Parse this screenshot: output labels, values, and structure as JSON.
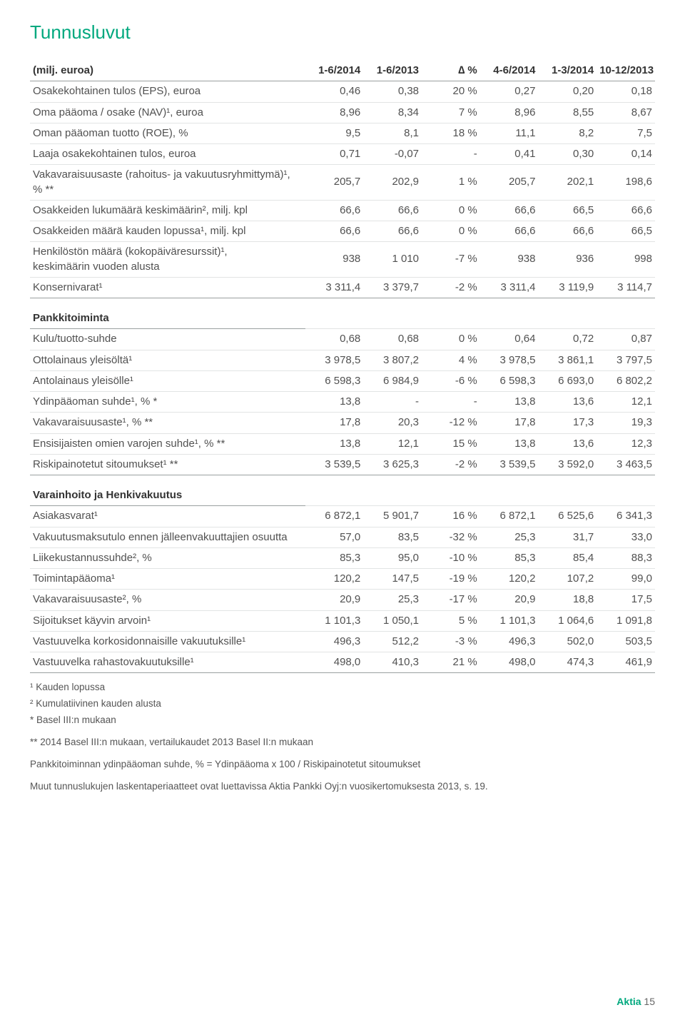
{
  "colors": {
    "accent": "#00a87e",
    "text": "#515151",
    "headerText": "#333333",
    "ruleStrong": "#9aa0a0",
    "ruleLight": "#e2e4e4",
    "background": "#ffffff"
  },
  "title": "Tunnusluvut",
  "columns": [
    "(milj. euroa)",
    "1-6/2014",
    "1-6/2013",
    "∆ %",
    "4-6/2014",
    "1-3/2014",
    "10-12/2013"
  ],
  "sections": [
    {
      "header": null,
      "rows": [
        {
          "label": "Osakekohtainen tulos (EPS), euroa",
          "v": [
            "0,46",
            "0,38",
            "20 %",
            "0,27",
            "0,20",
            "0,18"
          ]
        },
        {
          "label": "Oma pääoma / osake (NAV)¹, euroa",
          "v": [
            "8,96",
            "8,34",
            "7 %",
            "8,96",
            "8,55",
            "8,67"
          ]
        },
        {
          "label": "Oman pääoman tuotto (ROE), %",
          "v": [
            "9,5",
            "8,1",
            "18 %",
            "11,1",
            "8,2",
            "7,5"
          ]
        },
        {
          "label": "Laaja osakekohtainen tulos, euroa",
          "v": [
            "0,71",
            "-0,07",
            "-",
            "0,41",
            "0,30",
            "0,14"
          ]
        },
        {
          "label": "Vakavaraisuusaste (rahoitus- ja vakuutusryhmittymä)¹, % **",
          "v": [
            "205,7",
            "202,9",
            "1 %",
            "205,7",
            "202,1",
            "198,6"
          ]
        },
        {
          "label": "Osakkeiden lukumäärä keskimäärin², milj. kpl",
          "v": [
            "66,6",
            "66,6",
            "0 %",
            "66,6",
            "66,5",
            "66,6"
          ]
        },
        {
          "label": "Osakkeiden määrä kauden lopussa¹, milj. kpl",
          "v": [
            "66,6",
            "66,6",
            "0 %",
            "66,6",
            "66,6",
            "66,5"
          ]
        },
        {
          "label": "Henkilöstön määrä (kokopäiväresurssit)¹,<br>keskimäärin vuoden alusta",
          "v": [
            "938",
            "1 010",
            "-7 %",
            "938",
            "936",
            "998"
          ]
        },
        {
          "label": "Konsernivarat¹",
          "v": [
            "3 311,4",
            "3 379,7",
            "-2 %",
            "3 311,4",
            "3 119,9",
            "3 114,7"
          ],
          "last": true
        }
      ]
    },
    {
      "header": "Pankkitoiminta",
      "rows": [
        {
          "label": "Kulu/tuotto-suhde",
          "v": [
            "0,68",
            "0,68",
            "0 %",
            "0,64",
            "0,72",
            "0,87"
          ]
        },
        {
          "label": "Ottolainaus yleisöltä¹",
          "v": [
            "3 978,5",
            "3 807,2",
            "4 %",
            "3 978,5",
            "3 861,1",
            "3 797,5"
          ]
        },
        {
          "label": "Antolainaus yleisölle¹",
          "v": [
            "6 598,3",
            "6 984,9",
            "-6 %",
            "6 598,3",
            "6 693,0",
            "6 802,2"
          ]
        },
        {
          "label": "Ydinpääoman suhde¹, % *",
          "v": [
            "13,8",
            "-",
            "-",
            "13,8",
            "13,6",
            "12,1"
          ]
        },
        {
          "label": "Vakavaraisuusaste¹, % **",
          "v": [
            "17,8",
            "20,3",
            "-12 %",
            "17,8",
            "17,3",
            "19,3"
          ]
        },
        {
          "label": "Ensisijaisten omien varojen suhde¹, % **",
          "v": [
            "13,8",
            "12,1",
            "15 %",
            "13,8",
            "13,6",
            "12,3"
          ]
        },
        {
          "label": "Riskipainotetut sitoumukset¹ **",
          "v": [
            "3 539,5",
            "3 625,3",
            "-2 %",
            "3 539,5",
            "3 592,0",
            "3 463,5"
          ],
          "last": true
        }
      ]
    },
    {
      "header": "Varainhoito ja Henkivakuutus",
      "rows": [
        {
          "label": "Asiakasvarat¹",
          "v": [
            "6 872,1",
            "5 901,7",
            "16 %",
            "6 872,1",
            "6 525,6",
            "6 341,3"
          ]
        },
        {
          "label": "Vakuutusmaksutulo ennen jälleenvakuuttajien osuutta",
          "v": [
            "57,0",
            "83,5",
            "-32 %",
            "25,3",
            "31,7",
            "33,0"
          ]
        },
        {
          "label": "Liikekustannussuhde², %",
          "v": [
            "85,3",
            "95,0",
            "-10 %",
            "85,3",
            "85,4",
            "88,3"
          ]
        },
        {
          "label": "Toimintapääoma¹",
          "v": [
            "120,2",
            "147,5",
            "-19 %",
            "120,2",
            "107,2",
            "99,0"
          ]
        },
        {
          "label": "Vakavaraisuusaste², %",
          "v": [
            "20,9",
            "25,3",
            "-17 %",
            "20,9",
            "18,8",
            "17,5"
          ]
        },
        {
          "label": "Sijoitukset käyvin arvoin¹",
          "v": [
            "1 101,3",
            "1 050,1",
            "5 %",
            "1 101,3",
            "1 064,6",
            "1 091,8"
          ]
        },
        {
          "label": "Vastuuvelka korkosidonnaisille vakuutuksille¹",
          "v": [
            "496,3",
            "512,2",
            "-3 %",
            "496,3",
            "502,0",
            "503,5"
          ]
        },
        {
          "label": "Vastuuvelka rahastovakuutuksille¹",
          "v": [
            "498,0",
            "410,3",
            "21 %",
            "498,0",
            "474,3",
            "461,9"
          ],
          "last": true
        }
      ]
    }
  ],
  "footnotes": [
    "¹ Kauden lopussa",
    "² Kumulatiivinen kauden alusta",
    "* Basel III:n mukaan"
  ],
  "footnotesExtra": [
    "** 2014 Basel III:n mukaan, vertailukaudet 2013 Basel II:n mukaan",
    "Pankkitoiminnan ydinpääoman suhde, % = Ydinpääoma x 100 / Riskipainotetut sitoumukset",
    "Muut tunnuslukujen laskentaperiaatteet ovat luettavissa Aktia Pankki Oyj:n vuosikertomuksesta 2013, s. 19."
  ],
  "footer": {
    "brand": "Aktia",
    "page": "15"
  }
}
